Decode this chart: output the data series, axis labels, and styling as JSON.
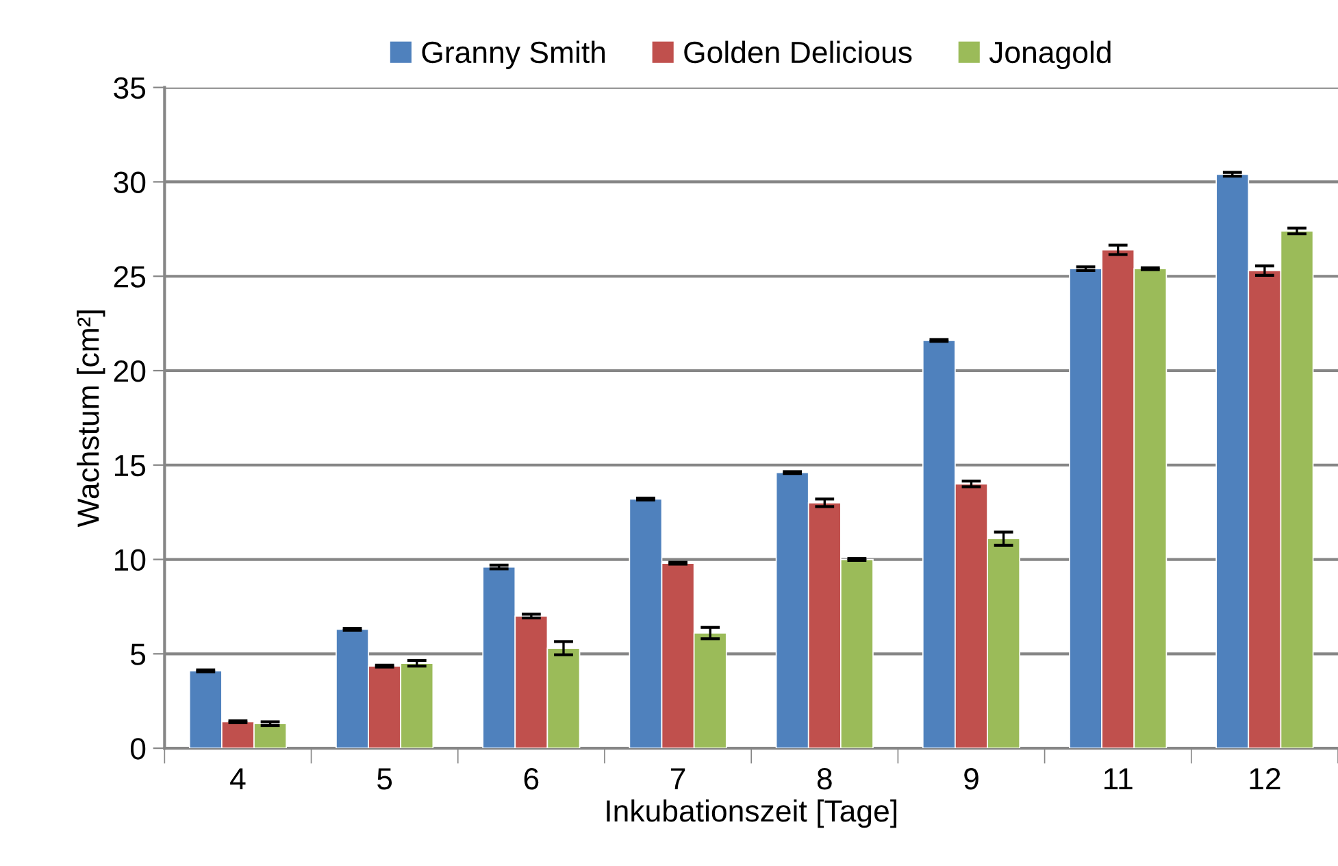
{
  "chart_data": {
    "type": "bar",
    "xlabel": "Inkubationszeit [Tage]",
    "ylabel": "Wachstum [cm²]",
    "categories": [
      "4",
      "5",
      "6",
      "7",
      "8",
      "9",
      "11",
      "12"
    ],
    "series": [
      {
        "name": "Granny Smith",
        "color": "#4f81bd",
        "values": [
          4.1,
          6.3,
          9.6,
          13.2,
          14.6,
          21.6,
          25.4,
          30.4
        ],
        "errors": [
          0.05,
          0.05,
          0.1,
          0.05,
          0.05,
          0.05,
          0.1,
          0.1
        ]
      },
      {
        "name": "Golden Delicious",
        "color": "#c0504d",
        "values": [
          1.4,
          4.35,
          7.0,
          9.8,
          13.0,
          14.0,
          26.4,
          25.3
        ],
        "errors": [
          0.05,
          0.05,
          0.1,
          0.05,
          0.2,
          0.15,
          0.25,
          0.25
        ]
      },
      {
        "name": "Jonagold",
        "color": "#9bbb59",
        "values": [
          1.3,
          4.5,
          5.3,
          6.1,
          10.0,
          11.1,
          25.4,
          27.4
        ],
        "errors": [
          0.1,
          0.15,
          0.35,
          0.3,
          0.05,
          0.35,
          0.05,
          0.15
        ]
      }
    ],
    "ylim": [
      0,
      35
    ],
    "yticks": [
      0,
      5,
      10,
      15,
      20,
      25,
      30,
      35
    ],
    "grid": "y",
    "legend": "top"
  }
}
